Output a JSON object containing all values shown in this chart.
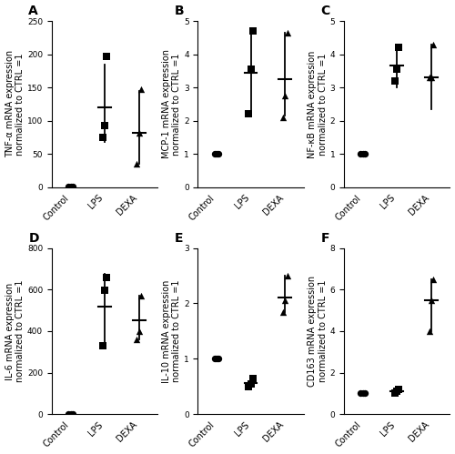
{
  "panels": [
    {
      "label": "A",
      "ylabel": "TNF-α mRNA expression\nnormalized to CTRL =1",
      "ylim": [
        0,
        250
      ],
      "yticks": [
        0,
        50,
        100,
        150,
        200,
        250
      ],
      "groups": [
        "Control",
        "LPS",
        "DEXA"
      ],
      "ctrl_pts": [
        1,
        1,
        1
      ],
      "lps_pts": [
        75,
        93,
        197
      ],
      "dexa_pts": [
        35,
        82,
        148
      ],
      "lps_mean": 120,
      "lps_err_lo": 52,
      "lps_err_hi": 65,
      "dexa_mean": 82,
      "dexa_err_lo": 47,
      "dexa_err_hi": 63
    },
    {
      "label": "B",
      "ylabel": "MCP-1 mRNA expression\nnormalized to CTRL =1",
      "ylim": [
        0,
        5
      ],
      "yticks": [
        0,
        1,
        2,
        3,
        4,
        5
      ],
      "groups": [
        "Control",
        "LPS",
        "DEXA"
      ],
      "ctrl_pts": [
        1,
        1,
        1
      ],
      "lps_pts": [
        2.2,
        3.55,
        4.7
      ],
      "dexa_pts": [
        2.1,
        2.75,
        4.65
      ],
      "lps_mean": 3.45,
      "lps_err_lo": 1.25,
      "lps_err_hi": 1.25,
      "dexa_mean": 3.25,
      "dexa_err_lo": 1.1,
      "dexa_err_hi": 1.4
    },
    {
      "label": "C",
      "ylabel": "NF-κB mRNA expression\nnormalized to CTRL =1",
      "ylim": [
        0,
        5
      ],
      "yticks": [
        0,
        1,
        2,
        3,
        4,
        5
      ],
      "groups": [
        "Control",
        "LPS",
        "DEXA"
      ],
      "ctrl_pts": [
        1,
        1,
        1
      ],
      "lps_pts": [
        3.2,
        3.55,
        4.2
      ],
      "dexa_pts": [
        3.3,
        3.3,
        4.3
      ],
      "lps_mean": 3.65,
      "lps_err_lo": 0.65,
      "lps_err_hi": 0.55,
      "dexa_mean": 3.3,
      "dexa_err_lo": 0.95,
      "dexa_err_hi": 1.0
    },
    {
      "label": "D",
      "ylabel": "IL-6 mRNA expression\nnormalized to CTRL =1",
      "ylim": [
        0,
        800
      ],
      "yticks": [
        0,
        200,
        400,
        600,
        800
      ],
      "groups": [
        "Control",
        "LPS",
        "DEXA"
      ],
      "ctrl_pts": [
        1,
        1,
        1
      ],
      "lps_pts": [
        330,
        595,
        660
      ],
      "dexa_pts": [
        360,
        400,
        570
      ],
      "lps_mean": 520,
      "lps_err_lo": 185,
      "lps_err_hi": 155,
      "dexa_mean": 450,
      "dexa_err_lo": 90,
      "dexa_err_hi": 120
    },
    {
      "label": "E",
      "ylabel": "IL-10 mRNA expression\nnormalized to CTRL =1",
      "ylim": [
        0,
        3
      ],
      "yticks": [
        0,
        1,
        2,
        3
      ],
      "groups": [
        "Control",
        "LPS",
        "DEXA"
      ],
      "ctrl_pts": [
        1,
        1,
        1
      ],
      "lps_pts": [
        0.5,
        0.55,
        0.65
      ],
      "dexa_pts": [
        1.85,
        2.05,
        2.5
      ],
      "lps_mean": 0.57,
      "lps_err_lo": 0.07,
      "lps_err_hi": 0.08,
      "dexa_mean": 2.1,
      "dexa_err_lo": 0.25,
      "dexa_err_hi": 0.4
    },
    {
      "label": "F",
      "ylabel": "CD163 mRNA expression\nnormalized to CTRL =1",
      "ylim": [
        0,
        8
      ],
      "yticks": [
        0,
        2,
        4,
        6,
        8
      ],
      "groups": [
        "Control",
        "LPS",
        "DEXA"
      ],
      "ctrl_pts": [
        1,
        1,
        1
      ],
      "lps_pts": [
        1.0,
        1.1,
        1.2
      ],
      "dexa_pts": [
        4.0,
        5.5,
        6.5
      ],
      "lps_mean": 1.1,
      "lps_err_lo": 0.1,
      "lps_err_hi": 0.1,
      "dexa_mean": 5.5,
      "dexa_err_lo": 1.5,
      "dexa_err_hi": 1.0
    }
  ],
  "marker_color": "black",
  "error_color": "black",
  "error_linewidth": 1.3,
  "xlabel_fontsize": 7,
  "ylabel_fontsize": 7,
  "tick_fontsize": 6.5,
  "label_fontsize": 10,
  "ctrl_marker": "o",
  "lps_marker": "s",
  "dexa_marker": "^",
  "marker_size": 28
}
